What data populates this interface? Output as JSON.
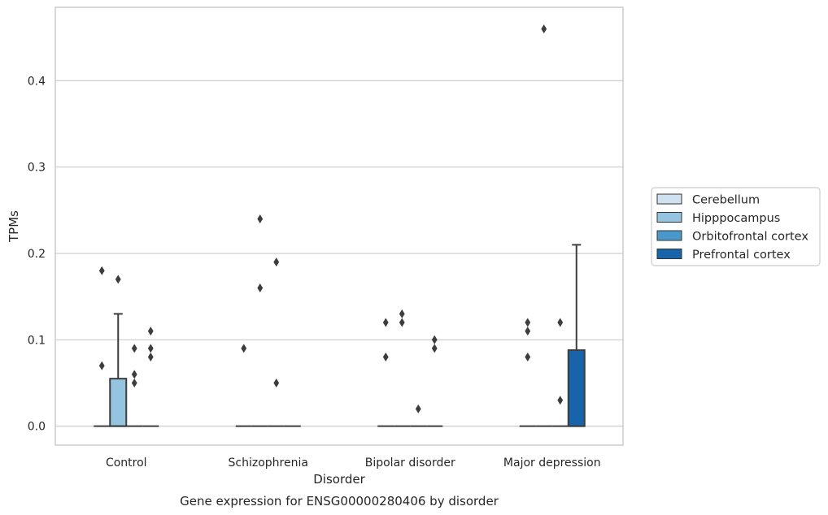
{
  "chart_data": {
    "type": "box",
    "title": "Gene expression for ENSG00000280406 by disorder",
    "xlabel": "Disorder",
    "ylabel": "TPMs",
    "ylim": [
      -0.022,
      0.485
    ],
    "yticks": [
      0.0,
      0.1,
      0.2,
      0.3,
      0.4
    ],
    "ytick_labels": [
      "0.0",
      "0.1",
      "0.2",
      "0.3",
      "0.4"
    ],
    "grid": "horizontal",
    "legend_position": "right",
    "categories": [
      "Control",
      "Schizophrenia",
      "Bipolar disorder",
      "Major depression"
    ],
    "series": [
      {
        "name": "Cerebellum",
        "color": "#d0e1f2",
        "boxes": [
          {
            "q1": 0,
            "median": 0,
            "q3": 0,
            "whisker_low": 0,
            "whisker_high": 0,
            "outliers": [
              0.07,
              0.18
            ]
          },
          {
            "q1": 0,
            "median": 0,
            "q3": 0,
            "whisker_low": 0,
            "whisker_high": 0,
            "outliers": [
              0.09
            ]
          },
          {
            "q1": 0,
            "median": 0,
            "q3": 0,
            "whisker_low": 0,
            "whisker_high": 0,
            "outliers": [
              0.08,
              0.12
            ]
          },
          {
            "q1": 0,
            "median": 0,
            "q3": 0,
            "whisker_low": 0,
            "whisker_high": 0,
            "outliers": [
              0.08,
              0.11,
              0.12
            ]
          }
        ]
      },
      {
        "name": "Hipppocampus",
        "color": "#94c4df",
        "boxes": [
          {
            "q1": 0,
            "median": 0,
            "q3": 0.055,
            "whisker_low": 0,
            "whisker_high": 0.13,
            "outliers": [
              0.17
            ]
          },
          {
            "q1": 0,
            "median": 0,
            "q3": 0,
            "whisker_low": 0,
            "whisker_high": 0,
            "outliers": [
              0.16,
              0.24
            ]
          },
          {
            "q1": 0,
            "median": 0,
            "q3": 0,
            "whisker_low": 0,
            "whisker_high": 0,
            "outliers": [
              0.12,
              0.13
            ]
          },
          {
            "q1": 0,
            "median": 0,
            "q3": 0,
            "whisker_low": 0,
            "whisker_high": 0,
            "outliers": [
              0.46
            ]
          }
        ]
      },
      {
        "name": "Orbitofrontal cortex",
        "color": "#4a98c9",
        "boxes": [
          {
            "q1": 0,
            "median": 0,
            "q3": 0,
            "whisker_low": 0,
            "whisker_high": 0,
            "outliers": [
              0.05,
              0.06,
              0.09
            ]
          },
          {
            "q1": 0,
            "median": 0,
            "q3": 0,
            "whisker_low": 0,
            "whisker_high": 0,
            "outliers": [
              0.05,
              0.19
            ]
          },
          {
            "q1": 0,
            "median": 0,
            "q3": 0,
            "whisker_low": 0,
            "whisker_high": 0,
            "outliers": [
              0.02
            ]
          },
          {
            "q1": 0,
            "median": 0,
            "q3": 0,
            "whisker_low": 0,
            "whisker_high": 0,
            "outliers": [
              0.03,
              0.12
            ]
          }
        ]
      },
      {
        "name": "Prefrontal cortex",
        "color": "#1764ab",
        "boxes": [
          {
            "q1": 0,
            "median": 0,
            "q3": 0,
            "whisker_low": 0,
            "whisker_high": 0,
            "outliers": [
              0.08,
              0.09,
              0.11
            ]
          },
          {
            "q1": 0,
            "median": 0,
            "q3": 0,
            "whisker_low": 0,
            "whisker_high": 0,
            "outliers": []
          },
          {
            "q1": 0,
            "median": 0,
            "q3": 0,
            "whisker_low": 0,
            "whisker_high": 0,
            "outliers": [
              0.09,
              0.1
            ]
          },
          {
            "q1": 0,
            "median": 0,
            "q3": 0.088,
            "whisker_low": 0,
            "whisker_high": 0.21,
            "outliers": []
          }
        ]
      }
    ],
    "colors": {
      "grid": "#cccccc",
      "spine": "#cccccc",
      "box_edge": "#3d3d3d",
      "outlier": "#3d3d3d"
    }
  }
}
